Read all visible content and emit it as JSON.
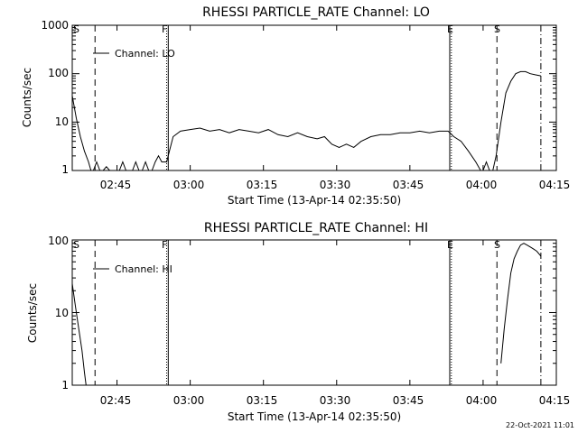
{
  "footer": {
    "timestamp": "22-Oct-2021 11:01"
  },
  "chart_data": [
    {
      "type": "line",
      "title": "RHESSI PARTICLE_RATE Channel: LO",
      "ylabel": "Counts/sec",
      "xlabel": "Start Time (13-Apr-14 02:35:50)",
      "y_scale": "log",
      "ylim": [
        1,
        1000
      ],
      "xlim": [
        "02:35:50",
        "04:15:00"
      ],
      "y_ticks": [
        "1",
        "10",
        "100",
        "1000"
      ],
      "x_ticks": [
        "02:45",
        "03:00",
        "03:15",
        "03:30",
        "03:45",
        "04:00",
        "04:15"
      ],
      "legend": {
        "label": "Channel: LO",
        "position": "top-left"
      },
      "markers": [
        {
          "label": "S",
          "time": "02:35:50",
          "style": "solid"
        },
        {
          "label": "",
          "time": "02:40:30",
          "style": "dashed"
        },
        {
          "label": "F",
          "time": "02:55:10",
          "style": "dotted"
        },
        {
          "label": "",
          "time": "02:55:30",
          "style": "solid"
        },
        {
          "label": "E",
          "time": "03:53:10",
          "style": "solid"
        },
        {
          "label": "",
          "time": "03:53:30",
          "style": "dotted"
        },
        {
          "label": "S",
          "time": "04:02:50",
          "style": "dashed"
        },
        {
          "label": "",
          "time": "04:11:50",
          "style": "dashdot"
        }
      ],
      "series": [
        {
          "x": [
            "02:35:50",
            "02:36:40",
            "02:37:30",
            "02:38:20",
            "02:39:10",
            "02:39:40",
            "02:40:10",
            "02:40:50",
            "02:41:30",
            "02:42:10",
            "02:42:50",
            "02:43:30",
            "02:44:10",
            "02:44:50",
            "02:45:30",
            "02:46:10",
            "02:46:50",
            "02:47:30",
            "02:48:10",
            "02:48:50",
            "02:49:30",
            "02:50:10",
            "02:50:50",
            "02:51:30",
            "02:52:10",
            "02:52:50",
            "02:53:30",
            "02:54:10",
            "02:54:50",
            "02:55:10",
            "02:56:30",
            "02:58:00",
            "03:00:00",
            "03:02:00",
            "03:04:00",
            "03:06:00",
            "03:08:00",
            "03:10:00",
            "03:12:00",
            "03:14:00",
            "03:16:00",
            "03:18:00",
            "03:20:00",
            "03:22:00",
            "03:24:00",
            "03:26:00",
            "03:27:30",
            "03:29:00",
            "03:30:30",
            "03:32:00",
            "03:33:30",
            "03:35:00",
            "03:37:00",
            "03:39:00",
            "03:41:00",
            "03:43:00",
            "03:45:00",
            "03:47:00",
            "03:49:00",
            "03:51:00",
            "03:52:50",
            "03:54:00",
            "03:55:30",
            "03:57:00",
            "03:58:30",
            "03:59:30",
            "04:00:00",
            "04:00:40",
            "04:01:20",
            "04:02:00",
            "04:02:40",
            "04:03:40",
            "04:04:40",
            "04:05:40",
            "04:06:40",
            "04:07:40",
            "04:08:40",
            "04:09:40",
            "04:10:40",
            "04:11:50"
          ],
          "y": [
            35,
            12,
            5,
            2.5,
            1.5,
            1,
            1,
            1.5,
            1,
            1,
            1.2,
            1,
            1,
            1,
            1,
            1.5,
            1,
            1,
            1,
            1.5,
            1,
            1,
            1.5,
            1,
            1,
            1.5,
            2,
            1.5,
            1.5,
            1.5,
            5,
            6.5,
            7,
            7.5,
            6.5,
            7,
            6,
            7,
            6.5,
            6,
            7,
            5.5,
            5,
            6,
            5,
            4.5,
            5,
            3.5,
            3,
            3.5,
            3,
            4,
            5,
            5.5,
            5.5,
            6,
            6,
            6.5,
            6,
            6.5,
            6.5,
            5,
            4,
            2.5,
            1.5,
            1,
            1,
            1.5,
            1,
            1,
            2,
            10,
            40,
            70,
            100,
            110,
            110,
            100,
            95,
            90
          ]
        }
      ]
    },
    {
      "type": "line",
      "title": "RHESSI PARTICLE_RATE Channel: HI",
      "ylabel": "Counts/sec",
      "xlabel": "Start Time (13-Apr-14 02:35:50)",
      "y_scale": "log",
      "ylim": [
        1,
        100
      ],
      "xlim": [
        "02:35:50",
        "04:15:00"
      ],
      "y_ticks": [
        "1",
        "10",
        "100"
      ],
      "x_ticks": [
        "02:45",
        "03:00",
        "03:15",
        "03:30",
        "03:45",
        "04:00",
        "04:15"
      ],
      "legend": {
        "label": "Channel: HI",
        "position": "top-left"
      },
      "markers": [
        {
          "label": "S",
          "time": "02:35:50",
          "style": "solid"
        },
        {
          "label": "",
          "time": "02:40:30",
          "style": "dashed"
        },
        {
          "label": "F",
          "time": "02:55:10",
          "style": "dotted"
        },
        {
          "label": "",
          "time": "02:55:30",
          "style": "solid"
        },
        {
          "label": "E",
          "time": "03:53:10",
          "style": "solid"
        },
        {
          "label": "",
          "time": "03:53:30",
          "style": "dotted"
        },
        {
          "label": "S",
          "time": "04:02:50",
          "style": "dashed"
        },
        {
          "label": "",
          "time": "04:11:50",
          "style": "dashdot"
        }
      ],
      "series": [
        {
          "x": [
            "02:35:50",
            "02:36:30",
            "02:37:10",
            "02:37:50",
            "02:38:20",
            "02:38:40",
            "04:03:40",
            "04:04:20",
            "04:05:00",
            "04:05:40",
            "04:06:20",
            "04:07:00",
            "04:07:40",
            "04:08:20",
            "04:09:00",
            "04:09:40",
            "04:10:20",
            "04:11:00",
            "04:11:50"
          ],
          "y": [
            25,
            12,
            6,
            3,
            1.5,
            1,
            2,
            6,
            15,
            35,
            55,
            70,
            85,
            90,
            85,
            80,
            75,
            70,
            60
          ]
        }
      ]
    }
  ]
}
